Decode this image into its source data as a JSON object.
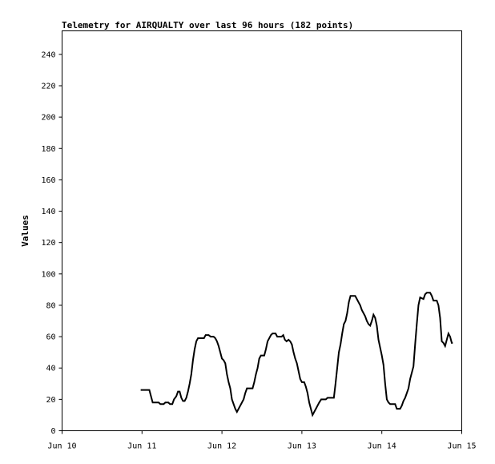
{
  "chart_data": {
    "type": "line",
    "title": "Telemetry for AIRQUALTY over last 96 hours (182 points)",
    "xlabel": "",
    "ylabel": "Values",
    "ylim": [
      0,
      255
    ],
    "yticks": [
      0,
      20,
      40,
      60,
      80,
      100,
      120,
      140,
      160,
      180,
      200,
      220,
      240
    ],
    "xlim_hours": [
      0,
      120
    ],
    "xticks": [
      {
        "hour": 0,
        "label": "Jun 10"
      },
      {
        "hour": 24,
        "label": "Jun 11"
      },
      {
        "hour": 48,
        "label": "Jun 12"
      },
      {
        "hour": 72,
        "label": "Jun 13"
      },
      {
        "hour": 96,
        "label": "Jun 14"
      },
      {
        "hour": 120,
        "label": "Jun 15"
      }
    ],
    "grid": false,
    "series": [
      {
        "color": "#000000",
        "points": [
          [
            23.6,
            26
          ],
          [
            26.2,
            26
          ],
          [
            26.7,
            22
          ],
          [
            27.2,
            18
          ],
          [
            29.0,
            18
          ],
          [
            29.5,
            17
          ],
          [
            30.5,
            17
          ],
          [
            31.0,
            18
          ],
          [
            31.9,
            18
          ],
          [
            32.4,
            17
          ],
          [
            33.1,
            17
          ],
          [
            33.6,
            20
          ],
          [
            34.3,
            22
          ],
          [
            34.8,
            25
          ],
          [
            35.3,
            25
          ],
          [
            35.8,
            21
          ],
          [
            36.3,
            19
          ],
          [
            36.8,
            19
          ],
          [
            37.3,
            21
          ],
          [
            37.8,
            25
          ],
          [
            38.3,
            30
          ],
          [
            38.8,
            36
          ],
          [
            39.3,
            45
          ],
          [
            39.8,
            52
          ],
          [
            40.3,
            57
          ],
          [
            40.8,
            59
          ],
          [
            42.6,
            59
          ],
          [
            43.1,
            61
          ],
          [
            44.0,
            61
          ],
          [
            44.6,
            60
          ],
          [
            45.5,
            60
          ],
          [
            46.0,
            59
          ],
          [
            46.5,
            57
          ],
          [
            47.0,
            54
          ],
          [
            47.5,
            50
          ],
          [
            48.0,
            46
          ],
          [
            48.5,
            45
          ],
          [
            49.0,
            43
          ],
          [
            49.5,
            36
          ],
          [
            50.0,
            31
          ],
          [
            50.5,
            27
          ],
          [
            51.0,
            20
          ],
          [
            51.5,
            17
          ],
          [
            52.0,
            14
          ],
          [
            52.5,
            12
          ],
          [
            53.0,
            14
          ],
          [
            53.5,
            16
          ],
          [
            54.0,
            18
          ],
          [
            54.5,
            20
          ],
          [
            55.0,
            24
          ],
          [
            55.5,
            27
          ],
          [
            57.2,
            27
          ],
          [
            57.7,
            31
          ],
          [
            58.2,
            36
          ],
          [
            58.7,
            40
          ],
          [
            59.2,
            46
          ],
          [
            59.7,
            48
          ],
          [
            60.7,
            48
          ],
          [
            61.2,
            52
          ],
          [
            61.7,
            57
          ],
          [
            62.2,
            59
          ],
          [
            62.7,
            61
          ],
          [
            63.2,
            62
          ],
          [
            64.1,
            62
          ],
          [
            64.6,
            60
          ],
          [
            65.9,
            60
          ],
          [
            66.4,
            61
          ],
          [
            66.9,
            58
          ],
          [
            67.4,
            57
          ],
          [
            68.0,
            58
          ],
          [
            68.5,
            57
          ],
          [
            69.0,
            55
          ],
          [
            69.5,
            50
          ],
          [
            70.0,
            46
          ],
          [
            70.5,
            43
          ],
          [
            71.0,
            38
          ],
          [
            71.5,
            33
          ],
          [
            72.0,
            31
          ],
          [
            72.7,
            31
          ],
          [
            73.2,
            28
          ],
          [
            73.7,
            24
          ],
          [
            74.2,
            18
          ],
          [
            74.7,
            14
          ],
          [
            75.2,
            10
          ],
          [
            75.7,
            12
          ],
          [
            76.2,
            14
          ],
          [
            76.7,
            16
          ],
          [
            77.2,
            18
          ],
          [
            77.8,
            20
          ],
          [
            79.2,
            20
          ],
          [
            79.7,
            21
          ],
          [
            81.6,
            21
          ],
          [
            82.1,
            30
          ],
          [
            82.6,
            40
          ],
          [
            83.1,
            50
          ],
          [
            83.6,
            55
          ],
          [
            84.1,
            62
          ],
          [
            84.6,
            68
          ],
          [
            85.1,
            70
          ],
          [
            85.6,
            75
          ],
          [
            86.1,
            82
          ],
          [
            86.6,
            86
          ],
          [
            88.0,
            86
          ],
          [
            88.5,
            84
          ],
          [
            89.0,
            82
          ],
          [
            89.5,
            80
          ],
          [
            90.0,
            77
          ],
          [
            90.5,
            75
          ],
          [
            91.0,
            73
          ],
          [
            91.5,
            70
          ],
          [
            92.0,
            68
          ],
          [
            92.5,
            67
          ],
          [
            93.0,
            70
          ],
          [
            93.5,
            74
          ],
          [
            94.0,
            72
          ],
          [
            94.5,
            67
          ],
          [
            95.0,
            58
          ],
          [
            95.5,
            53
          ],
          [
            96.0,
            48
          ],
          [
            96.5,
            42
          ],
          [
            97.0,
            30
          ],
          [
            97.5,
            20
          ],
          [
            98.0,
            18
          ],
          [
            98.5,
            17
          ],
          [
            100.0,
            17
          ],
          [
            100.5,
            14
          ],
          [
            101.5,
            14
          ],
          [
            102.0,
            16
          ],
          [
            102.5,
            19
          ],
          [
            103.0,
            21
          ],
          [
            103.5,
            24
          ],
          [
            104.0,
            27
          ],
          [
            104.5,
            33
          ],
          [
            105.0,
            37
          ],
          [
            105.5,
            41
          ],
          [
            106.0,
            55
          ],
          [
            106.5,
            68
          ],
          [
            107.0,
            80
          ],
          [
            107.5,
            85
          ],
          [
            108.5,
            84
          ],
          [
            109.0,
            87
          ],
          [
            109.5,
            88
          ],
          [
            110.5,
            88
          ],
          [
            111.0,
            86
          ],
          [
            111.5,
            83
          ],
          [
            112.5,
            83
          ],
          [
            113.0,
            80
          ],
          [
            113.5,
            72
          ],
          [
            114.0,
            57
          ],
          [
            114.5,
            56
          ],
          [
            115.0,
            54
          ],
          [
            115.5,
            58
          ],
          [
            116.0,
            62
          ],
          [
            116.5,
            60
          ],
          [
            117.0,
            56
          ],
          [
            117.3,
            56
          ]
        ]
      }
    ]
  }
}
